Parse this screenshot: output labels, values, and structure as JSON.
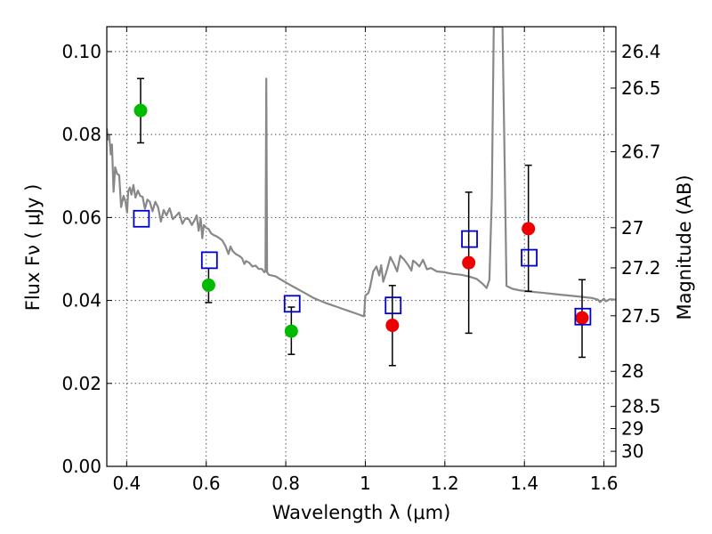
{
  "chart_data": {
    "type": "scatter",
    "xlabel": "Wavelength  λ (μm)",
    "ylabel": "Flux  Fν  ( μJy )",
    "ylabel_right": "Magnitude (AB)",
    "xlim": [
      0.35,
      1.63
    ],
    "ylim": [
      0.0,
      0.106
    ],
    "grid": true,
    "x_ticks": [
      {
        "v": 0.4,
        "label": "0.4"
      },
      {
        "v": 0.6,
        "label": "0.6"
      },
      {
        "v": 0.8,
        "label": "0.8"
      },
      {
        "v": 1.0,
        "label": "1"
      },
      {
        "v": 1.2,
        "label": "1.2"
      },
      {
        "v": 1.4,
        "label": "1.4"
      },
      {
        "v": 1.6,
        "label": "1.6"
      }
    ],
    "y_ticks": [
      {
        "v": 0.0,
        "label": "0.00"
      },
      {
        "v": 0.02,
        "label": "0.02"
      },
      {
        "v": 0.04,
        "label": "0.04"
      },
      {
        "v": 0.06,
        "label": "0.06"
      },
      {
        "v": 0.08,
        "label": "0.08"
      },
      {
        "v": 0.1,
        "label": "0.10"
      }
    ],
    "mag_ticks": [
      {
        "mag": 26.4,
        "label": "26.4"
      },
      {
        "mag": 26.5,
        "label": "26.5"
      },
      {
        "mag": 26.7,
        "label": "26.7"
      },
      {
        "mag": 27.0,
        "label": "27"
      },
      {
        "mag": 27.2,
        "label": "27.2"
      },
      {
        "mag": 27.5,
        "label": "27.5"
      },
      {
        "mag": 28.0,
        "label": "28"
      },
      {
        "mag": 28.5,
        "label": "28.5"
      },
      {
        "mag": 29.0,
        "label": "29"
      },
      {
        "mag": 30.0,
        "label": "30"
      }
    ],
    "colors": {
      "green": "#00bb00",
      "red": "#ee0000",
      "model_sed": "#888888",
      "model_flux": "#0000cc",
      "errorbar": "#000000",
      "grid": "#555555"
    },
    "series": [
      {
        "marker": "circle",
        "color": "green",
        "points": [
          {
            "x": 0.435,
            "y": 0.0858,
            "ylo": 0.078,
            "yhi": 0.0935
          },
          {
            "x": 0.606,
            "y": 0.0437,
            "ylo": 0.0395,
            "yhi": 0.0478
          },
          {
            "x": 0.814,
            "y": 0.0326,
            "ylo": 0.027,
            "yhi": 0.0384
          }
        ]
      },
      {
        "marker": "circle",
        "color": "red",
        "points": [
          {
            "x": 1.068,
            "y": 0.034,
            "ylo": 0.0243,
            "yhi": 0.0436
          },
          {
            "x": 1.26,
            "y": 0.0491,
            "ylo": 0.0321,
            "yhi": 0.0661
          },
          {
            "x": 1.41,
            "y": 0.0573,
            "ylo": 0.0422,
            "yhi": 0.0726
          },
          {
            "x": 1.545,
            "y": 0.0358,
            "ylo": 0.0263,
            "yhi": 0.045
          }
        ]
      },
      {
        "marker": "square",
        "color": "model_flux",
        "points": [
          {
            "x": 0.437,
            "y": 0.0597
          },
          {
            "x": 0.608,
            "y": 0.0497
          },
          {
            "x": 0.816,
            "y": 0.0392
          },
          {
            "x": 1.07,
            "y": 0.0388
          },
          {
            "x": 1.262,
            "y": 0.0548
          },
          {
            "x": 1.412,
            "y": 0.0503
          },
          {
            "x": 1.547,
            "y": 0.0361
          }
        ]
      },
      {
        "type": "line",
        "color": "model_sed",
        "points": [
          [
            0.35,
            0.0815
          ],
          [
            0.353,
            0.0788
          ],
          [
            0.356,
            0.0798
          ],
          [
            0.36,
            0.0752
          ],
          [
            0.363,
            0.0776
          ],
          [
            0.367,
            0.0662
          ],
          [
            0.371,
            0.0721
          ],
          [
            0.376,
            0.0705
          ],
          [
            0.381,
            0.0702
          ],
          [
            0.386,
            0.0625
          ],
          [
            0.392,
            0.0652
          ],
          [
            0.397,
            0.0638
          ],
          [
            0.401,
            0.0612
          ],
          [
            0.404,
            0.0664
          ],
          [
            0.408,
            0.0672
          ],
          [
            0.412,
            0.0655
          ],
          [
            0.417,
            0.0678
          ],
          [
            0.422,
            0.0648
          ],
          [
            0.428,
            0.0665
          ],
          [
            0.434,
            0.0652
          ],
          [
            0.44,
            0.065
          ],
          [
            0.446,
            0.0621
          ],
          [
            0.452,
            0.0643
          ],
          [
            0.458,
            0.0638
          ],
          [
            0.465,
            0.0615
          ],
          [
            0.472,
            0.0638
          ],
          [
            0.479,
            0.0625
          ],
          [
            0.486,
            0.059
          ],
          [
            0.493,
            0.0618
          ],
          [
            0.5,
            0.0605
          ],
          [
            0.508,
            0.0622
          ],
          [
            0.516,
            0.0596
          ],
          [
            0.524,
            0.0604
          ],
          [
            0.532,
            0.0612
          ],
          [
            0.54,
            0.0585
          ],
          [
            0.548,
            0.0598
          ],
          [
            0.556,
            0.0596
          ],
          [
            0.564,
            0.0582
          ],
          [
            0.57,
            0.0592
          ],
          [
            0.576,
            0.0605
          ],
          [
            0.581,
            0.0568
          ],
          [
            0.586,
            0.0598
          ],
          [
            0.59,
            0.055
          ],
          [
            0.594,
            0.0582
          ],
          [
            0.6,
            0.0575
          ],
          [
            0.606,
            0.0572
          ],
          [
            0.612,
            0.0562
          ],
          [
            0.618,
            0.0558
          ],
          [
            0.625,
            0.0555
          ],
          [
            0.632,
            0.0551
          ],
          [
            0.64,
            0.0545
          ],
          [
            0.648,
            0.0532
          ],
          [
            0.656,
            0.0512
          ],
          [
            0.661,
            0.053
          ],
          [
            0.666,
            0.052
          ],
          [
            0.674,
            0.0512
          ],
          [
            0.682,
            0.0508
          ],
          [
            0.69,
            0.0502
          ],
          [
            0.696,
            0.0488
          ],
          [
            0.7,
            0.0495
          ],
          [
            0.708,
            0.0491
          ],
          [
            0.716,
            0.0482
          ],
          [
            0.724,
            0.0484
          ],
          [
            0.732,
            0.0476
          ],
          [
            0.74,
            0.0476
          ],
          [
            0.746,
            0.0468
          ],
          [
            0.749,
            0.047
          ],
          [
            0.751,
            0.0935
          ],
          [
            0.753,
            0.0468
          ],
          [
            0.757,
            0.0462
          ],
          [
            0.765,
            0.046
          ],
          [
            0.775,
            0.0458
          ],
          [
            0.785,
            0.0452
          ],
          [
            0.795,
            0.0446
          ],
          [
            0.81,
            0.0438
          ],
          [
            0.825,
            0.043
          ],
          [
            0.84,
            0.0422
          ],
          [
            0.855,
            0.0414
          ],
          [
            0.87,
            0.0406
          ],
          [
            0.885,
            0.04
          ],
          [
            0.9,
            0.0394
          ],
          [
            0.915,
            0.0389
          ],
          [
            0.93,
            0.0384
          ],
          [
            0.945,
            0.0379
          ],
          [
            0.96,
            0.0374
          ],
          [
            0.975,
            0.0369
          ],
          [
            0.99,
            0.0364
          ],
          [
            0.997,
            0.0362
          ],
          [
            1.0,
            0.0412
          ],
          [
            1.008,
            0.0418
          ],
          [
            1.012,
            0.0432
          ],
          [
            1.02,
            0.047
          ],
          [
            1.028,
            0.0482
          ],
          [
            1.035,
            0.046
          ],
          [
            1.04,
            0.0485
          ],
          [
            1.045,
            0.0445
          ],
          [
            1.055,
            0.0475
          ],
          [
            1.063,
            0.0505
          ],
          [
            1.072,
            0.0488
          ],
          [
            1.08,
            0.047
          ],
          [
            1.088,
            0.0508
          ],
          [
            1.098,
            0.0498
          ],
          [
            1.108,
            0.0485
          ],
          [
            1.116,
            0.0472
          ],
          [
            1.12,
            0.0496
          ],
          [
            1.128,
            0.049
          ],
          [
            1.136,
            0.0482
          ],
          [
            1.145,
            0.0498
          ],
          [
            1.155,
            0.0475
          ],
          [
            1.165,
            0.0478
          ],
          [
            1.18,
            0.047
          ],
          [
            1.2,
            0.0468
          ],
          [
            1.22,
            0.0464
          ],
          [
            1.24,
            0.0462
          ],
          [
            1.26,
            0.0458
          ],
          [
            1.28,
            0.0452
          ],
          [
            1.295,
            0.044
          ],
          [
            1.305,
            0.043
          ],
          [
            1.312,
            0.045
          ],
          [
            1.318,
            0.065
          ],
          [
            1.323,
            0.106
          ],
          [
            1.345,
            0.106
          ],
          [
            1.35,
            0.075
          ],
          [
            1.355,
            0.0435
          ],
          [
            1.37,
            0.0428
          ],
          [
            1.39,
            0.0424
          ],
          [
            1.41,
            0.0422
          ],
          [
            1.43,
            0.042
          ],
          [
            1.45,
            0.0418
          ],
          [
            1.47,
            0.0416
          ],
          [
            1.49,
            0.0414
          ],
          [
            1.51,
            0.0412
          ],
          [
            1.53,
            0.041
          ],
          [
            1.55,
            0.0408
          ],
          [
            1.57,
            0.0406
          ],
          [
            1.585,
            0.0402
          ],
          [
            1.59,
            0.0396
          ],
          [
            1.6,
            0.0404
          ],
          [
            1.605,
            0.0398
          ],
          [
            1.615,
            0.0403
          ],
          [
            1.63,
            0.0402
          ]
        ]
      }
    ]
  }
}
